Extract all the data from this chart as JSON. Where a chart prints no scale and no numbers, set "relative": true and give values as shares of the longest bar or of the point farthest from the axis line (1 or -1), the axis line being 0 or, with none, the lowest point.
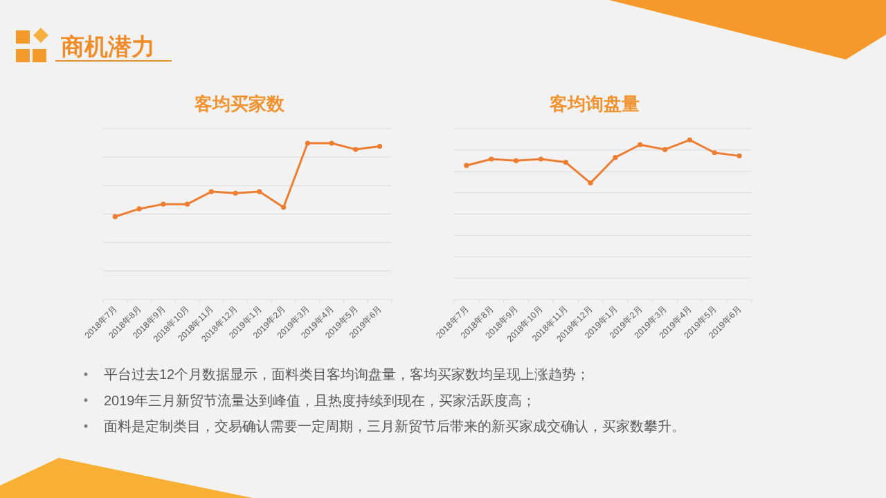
{
  "chart_data": [
    {
      "type": "other",
      "title": "商机潜力"
    },
    {
      "type": "line",
      "title": "客均买家数",
      "categories": [
        "2018年7月",
        "2018年8月",
        "2018年9月",
        "2018年10月",
        "2018年11月",
        "2018年12月",
        "2019年1月",
        "2019年2月",
        "2019年3月",
        "2019年4月",
        "2019年5月",
        "2019年6月"
      ],
      "series": [
        {
          "color": "#ed7d31",
          "values": [
            0.53,
            0.58,
            0.61,
            0.61,
            0.69,
            0.68,
            0.69,
            0.59,
            1,
            1,
            0.96,
            0.98
          ]
        }
      ],
      "relative": true,
      "grid": "y",
      "marker": "circle"
    },
    {
      "type": "line",
      "title": "客均询盘量",
      "categories": [
        "2018年7月",
        "2018年8月",
        "2018年9月",
        "2018年10月",
        "2018年11月",
        "2018年12月",
        "2019年1月",
        "2019年2月",
        "2019年3月",
        "2019年4月",
        "2019年5月",
        "2019年6月"
      ],
      "series": [
        {
          "color": "#ed7d31",
          "values": [
            0.84,
            0.88,
            0.87,
            0.88,
            0.86,
            0.73,
            0.89,
            0.97,
            0.94,
            1,
            0.92,
            0.9
          ]
        }
      ],
      "relative": true,
      "grid": "y",
      "marker": "circle"
    },
    {
      "type": "other",
      "annotations": [
        "平台过去12个月数据显示，面料类目客均询盘量，客均买家数均呈现上涨趋势；",
        "2019年三月新贸节流量达到峰值，且热度持续到现在，买家活跃度高；",
        "面料是定制类目，交易确认需要一定周期，三月新贸节后带来的新买家成交确认，买家数攀升。"
      ]
    }
  ]
}
